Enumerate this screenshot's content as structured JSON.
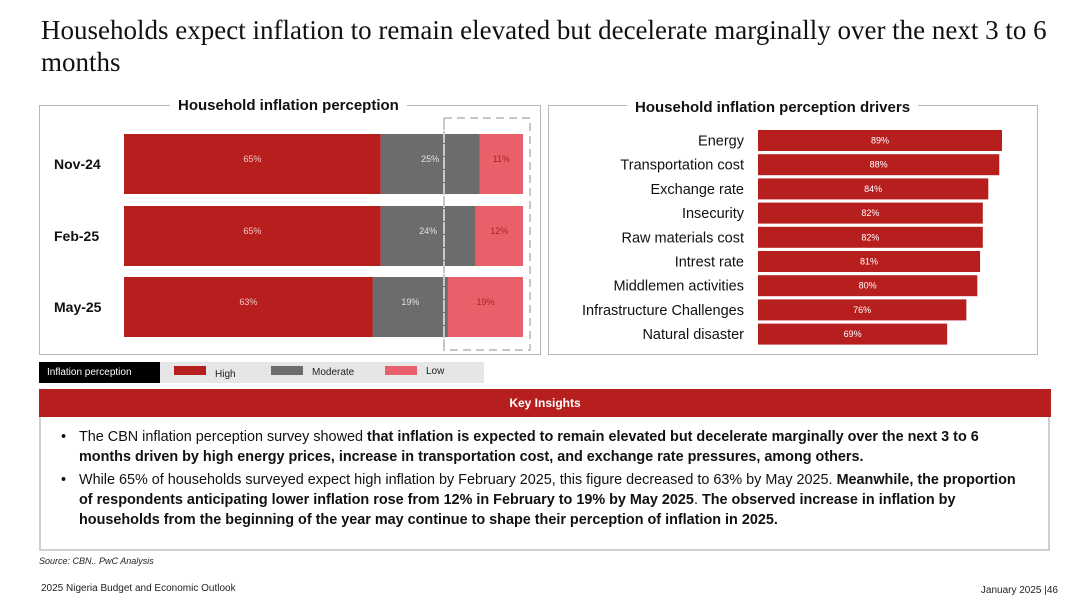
{
  "title": "Households expect inflation to remain elevated but decelerate marginally over the next 3 to 6 months",
  "colors": {
    "high": "#b71e1e",
    "moderate": "#6d6c6d",
    "low": "#e8606a",
    "driver_bar": "#b71e1e"
  },
  "chart_data": [
    {
      "type": "bar",
      "orientation": "horizontal",
      "stacked": true,
      "title": "Household inflation perception",
      "categories": [
        "Nov-24",
        "Feb-25",
        "May-25"
      ],
      "series": [
        {
          "name": "High",
          "values": [
            65,
            65,
            63
          ],
          "labels": [
            "65%",
            "65%",
            "63%"
          ]
        },
        {
          "name": "Moderate",
          "values": [
            25,
            24,
            19
          ],
          "labels": [
            "25%",
            "24%",
            "19%"
          ]
        },
        {
          "name": "Low",
          "values": [
            11,
            12,
            19
          ],
          "labels": [
            "11%",
            "12%",
            "19%"
          ]
        }
      ],
      "legend_title": "Inflation perception",
      "legend": [
        "High",
        "Moderate",
        "Low"
      ],
      "grid": false
    },
    {
      "type": "bar",
      "orientation": "horizontal",
      "title": "Household inflation perception drivers",
      "categories": [
        "Energy",
        "Transportation cost",
        "Exchange rate",
        "Insecurity",
        "Raw materials cost",
        "Intrest rate",
        "Middlemen activities",
        "Infrastructure Challenges",
        "Natural disaster"
      ],
      "values": [
        89,
        88,
        84,
        82,
        82,
        81,
        80,
        76,
        69
      ],
      "labels": [
        "89%",
        "88%",
        "84%",
        "82%",
        "82%",
        "81%",
        "80%",
        "76%",
        "69%"
      ],
      "grid": false
    }
  ],
  "insights": {
    "header": "Key Insights",
    "bullet1": {
      "t1": "The CBN inflation perception survey showed ",
      "b1": "that inflation is expected to remain elevated but decelerate marginally over the next 3 to 6 months driven by high energy prices, increase in transportation cost, and exchange rate pressures, among others."
    },
    "bullet2": {
      "t1": "While 65% of households surveyed expect high inflation by February 2025, this figure decreased to 63% by May 2025. ",
      "b1": "Meanwhile, the proportion of respondents anticipating lower inflation rose from 12% in February to 19% by May 2025",
      "t2": ". ",
      "b2": "The observed increase in inflation by households from the beginning of the year may continue to shape their perception of inflation in 2025."
    }
  },
  "source": "Source: CBN.. PwC Analysis",
  "footer": {
    "left": "2025 Nigeria Budget and Economic Outlook",
    "right": "January 2025 |46"
  }
}
